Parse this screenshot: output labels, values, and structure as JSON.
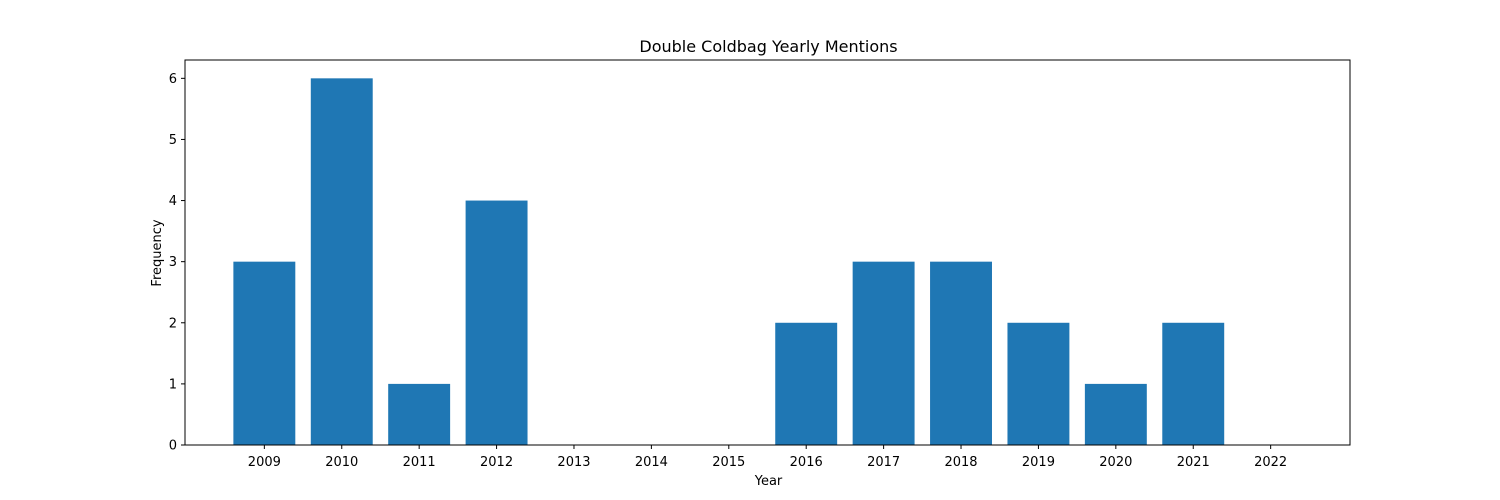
{
  "chart_data": {
    "type": "bar",
    "title": "Double Coldbag Yearly Mentions",
    "xlabel": "Year",
    "ylabel": "Frequency",
    "categories": [
      "2009",
      "2010",
      "2011",
      "2012",
      "2013",
      "2014",
      "2015",
      "2016",
      "2017",
      "2018",
      "2019",
      "2020",
      "2021",
      "2022"
    ],
    "values": [
      3,
      6,
      1,
      4,
      0,
      0,
      0,
      2,
      3,
      3,
      2,
      1,
      2,
      0
    ],
    "ylim": [
      0,
      6.3
    ],
    "yticks": [
      0,
      1,
      2,
      3,
      4,
      5,
      6
    ],
    "grid": false,
    "legend": "none",
    "bar_color": "#1f77b4"
  }
}
